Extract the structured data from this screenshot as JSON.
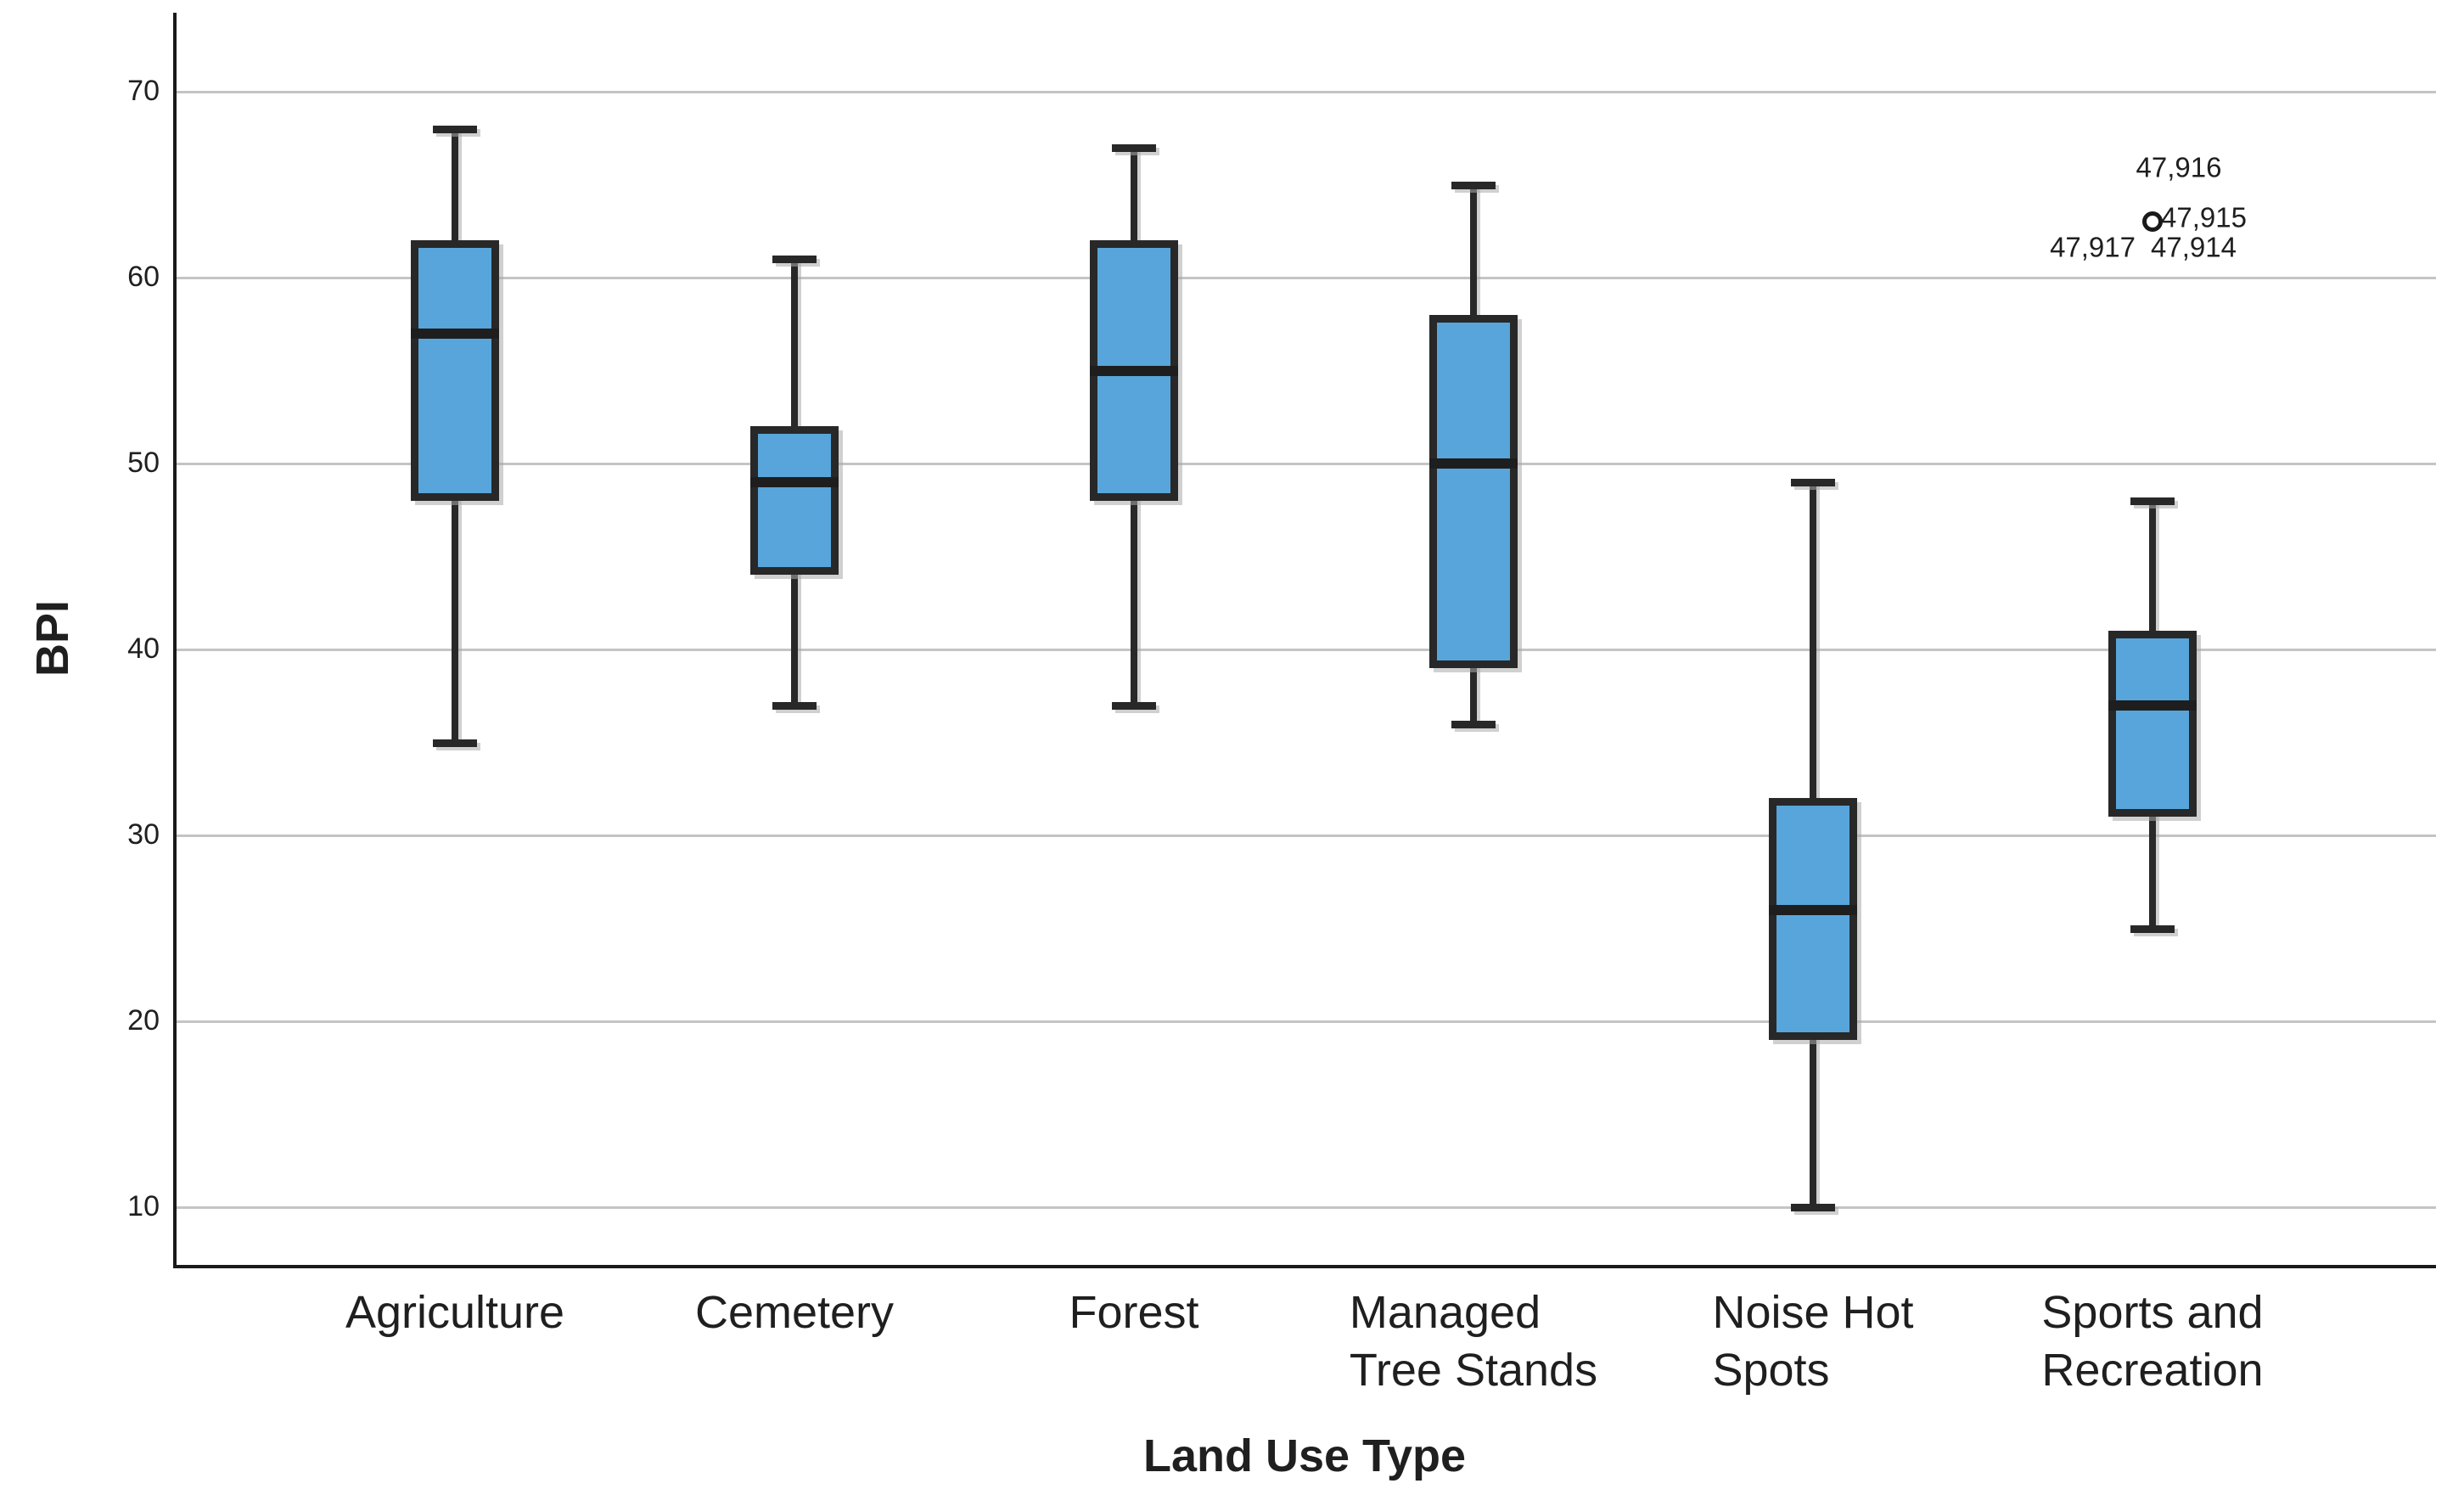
{
  "chart_data": {
    "type": "boxplot",
    "title": "",
    "xlabel": "Land Use Type",
    "ylabel": "BPI",
    "ylim": [
      6.9,
      74.2
    ],
    "yticks": [
      70,
      60,
      50,
      40,
      30,
      20,
      10
    ],
    "grid": true,
    "legend": false,
    "categories": [
      "Agriculture",
      "Cemetery",
      "Forest",
      "Managed Tree Stands",
      "Noise Hot Spots",
      "Sports and Recreation"
    ],
    "series": [
      {
        "category": "Agriculture",
        "label_lines": [
          "Agriculture"
        ],
        "min": 35,
        "q1": 48,
        "median": 57,
        "q3": 62,
        "max": 68
      },
      {
        "category": "Cemetery",
        "label_lines": [
          "Cemetery"
        ],
        "min": 37,
        "q1": 44,
        "median": 49,
        "q3": 52,
        "max": 61
      },
      {
        "category": "Forest",
        "label_lines": [
          "Forest"
        ],
        "min": 37,
        "q1": 48,
        "median": 55,
        "q3": 62,
        "max": 67
      },
      {
        "category": "Managed Tree Stands",
        "label_lines": [
          "Managed",
          "Tree Stands"
        ],
        "min": 36,
        "q1": 39,
        "median": 50,
        "q3": 58,
        "max": 65
      },
      {
        "category": "Noise Hot Spots",
        "label_lines": [
          "Noise Hot",
          "Spots"
        ],
        "min": 10,
        "q1": 19,
        "median": 26,
        "q3": 32,
        "max": 49
      },
      {
        "category": "Sports and Recreation",
        "label_lines": [
          "Sports and",
          "Recreation"
        ],
        "min": 25,
        "q1": 31,
        "median": 37,
        "q3": 41,
        "max": 48
      }
    ],
    "outliers": [
      {
        "category": "Sports and Recreation",
        "value": 63,
        "marker": "circle",
        "case_labels": {
          "top": "47,916",
          "right": "47,915",
          "bottom_left": "47,917",
          "bottom_right": "47,914"
        }
      }
    ],
    "colors": {
      "box_fill": "#57a5da",
      "box_border": "#282828",
      "median": "#1e1e1e",
      "gridline": "#c4c4c4",
      "axis": "#1a1a1a",
      "text": "#1f1f1f"
    }
  }
}
